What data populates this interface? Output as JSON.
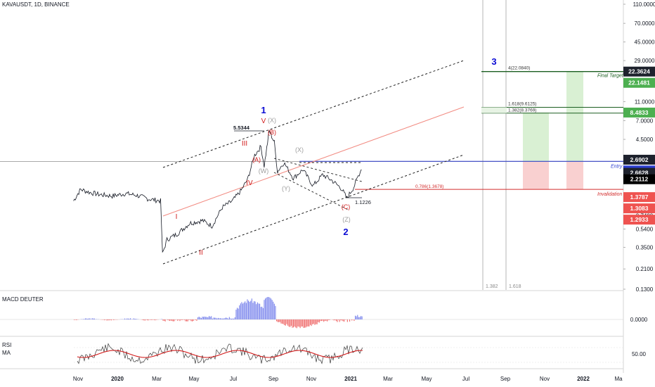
{
  "header": {
    "title": "KAVAUSDT, 1D, BINANCE"
  },
  "colors": {
    "price": "#131722",
    "channel": "#1f1f1f",
    "midline": "#f28b82",
    "entry": "#2d3fd1",
    "invalidation": "#d32f2f",
    "target": "#1b5e20",
    "green_zone": "#d9f0d3",
    "red_zone": "#f9d0d0",
    "wave_major": "#0b0bd4",
    "wave_minor": "#d21d1d",
    "wave_corrective": "#9e9e9e",
    "macd_up": "#7b85ec",
    "macd_down": "#ef6b6b",
    "rsi": "#3a3a3a",
    "rsi_ma": "#d21d1d"
  },
  "chart_data": [
    {
      "type": "line",
      "title": "KAVAUSDT, 1D, BINANCE",
      "y_scale": "log",
      "yaxis_ticks": [
        "110.0000",
        "70.0000",
        "45.0000",
        "29.0000",
        "18.0000",
        "11.0000",
        "7.0000",
        "4.5000",
        "2.8000",
        "1.8000",
        "1.1500",
        "0.7400",
        "0.5400",
        "0.3500",
        "0.2100",
        "0.1300"
      ],
      "xaxis_ticks": [
        "Nov",
        "2020",
        "Mar",
        "May",
        "Jul",
        "Sep",
        "Nov",
        "2021",
        "Mar",
        "May",
        "Jul",
        "Sep",
        "Nov",
        "2022",
        "Ma"
      ],
      "price_tags": [
        {
          "value": "22.3624",
          "style": "dark"
        },
        {
          "value": "22.1481",
          "style": "green"
        },
        {
          "value": "8.4833",
          "style": "green"
        },
        {
          "value": "2.6902",
          "style": "dark"
        },
        {
          "value": "2.6766",
          "style": "blue"
        },
        {
          "value": "2.6628",
          "style": "dark"
        },
        {
          "value": "2.2112",
          "style": "black"
        },
        {
          "value": "1.3787",
          "style": "red"
        },
        {
          "value": "1.3083",
          "style": "red"
        },
        {
          "value": "1.2933",
          "style": "red"
        }
      ],
      "series": [
        {
          "name": "KAVAUSDT",
          "points": [
            [
              "2019-10-25",
              1.05
            ],
            [
              "2019-11-05",
              1.38
            ],
            [
              "2019-11-20",
              1.28
            ],
            [
              "2019-12-05",
              1.22
            ],
            [
              "2019-12-25",
              1.18
            ],
            [
              "2020-01-15",
              1.25
            ],
            [
              "2020-02-01",
              1.2
            ],
            [
              "2020-02-20",
              1.1
            ],
            [
              "2020-03-10",
              1.05
            ],
            [
              "2020-03-13",
              0.3
            ],
            [
              "2020-03-20",
              0.42
            ],
            [
              "2020-04-05",
              0.48
            ],
            [
              "2020-04-25",
              0.62
            ],
            [
              "2020-05-15",
              0.66
            ],
            [
              "2020-05-30",
              0.58
            ],
            [
              "2020-06-15",
              0.9
            ],
            [
              "2020-07-01",
              1.05
            ],
            [
              "2020-07-15",
              1.35
            ],
            [
              "2020-07-25",
              1.75
            ],
            [
              "2020-08-05",
              3.1
            ],
            [
              "2020-08-15",
              3.8
            ],
            [
              "2020-08-20",
              2.4
            ],
            [
              "2020-08-28",
              5.53
            ],
            [
              "2020-09-05",
              4.2
            ],
            [
              "2020-09-10",
              2.1
            ],
            [
              "2020-09-20",
              2.6
            ],
            [
              "2020-10-05",
              1.8
            ],
            [
              "2020-10-20",
              2.2
            ],
            [
              "2020-11-05",
              1.5
            ],
            [
              "2020-11-20",
              1.95
            ],
            [
              "2020-12-05",
              1.7
            ],
            [
              "2020-12-20",
              1.4
            ],
            [
              "2020-12-28",
              1.12
            ],
            [
              "2021-01-08",
              1.45
            ],
            [
              "2021-01-15",
              1.9
            ],
            [
              "2021-01-20",
              2.21
            ]
          ]
        }
      ],
      "annotations": {
        "high_label": "5.5344",
        "low_label": "1.1226",
        "fib_low": "0.786(1.3678)",
        "fib_1618": "1.618(9.6125)",
        "fib_1382": "1.382(8.3769)",
        "fib_4": "4(22.0840)",
        "final_target": "Final Target",
        "entry": "Entry",
        "invalidation": "Invalidation",
        "vline1": "1.382",
        "vline2": "1.618"
      },
      "waves": {
        "w1": "1",
        "w2": "2",
        "w3": "3",
        "wI": "I",
        "wII": "II",
        "wIII": "III",
        "wIV": "IV",
        "wV": "V",
        "wA": "(A)",
        "wB": "(B)",
        "wC": "(C)",
        "wW": "(W)",
        "wX1": "(X)",
        "wY": "(Y)",
        "wX2": "(X)",
        "wZ": "(Z)"
      }
    },
    {
      "type": "bar",
      "title": "MACD DEUTER",
      "yaxis_ticks": [
        "0.0000"
      ]
    },
    {
      "type": "line",
      "title": "RSI",
      "series": [
        {
          "name": "RSI"
        },
        {
          "name": "MA"
        }
      ],
      "yaxis_ticks": [
        "50.00"
      ]
    }
  ]
}
